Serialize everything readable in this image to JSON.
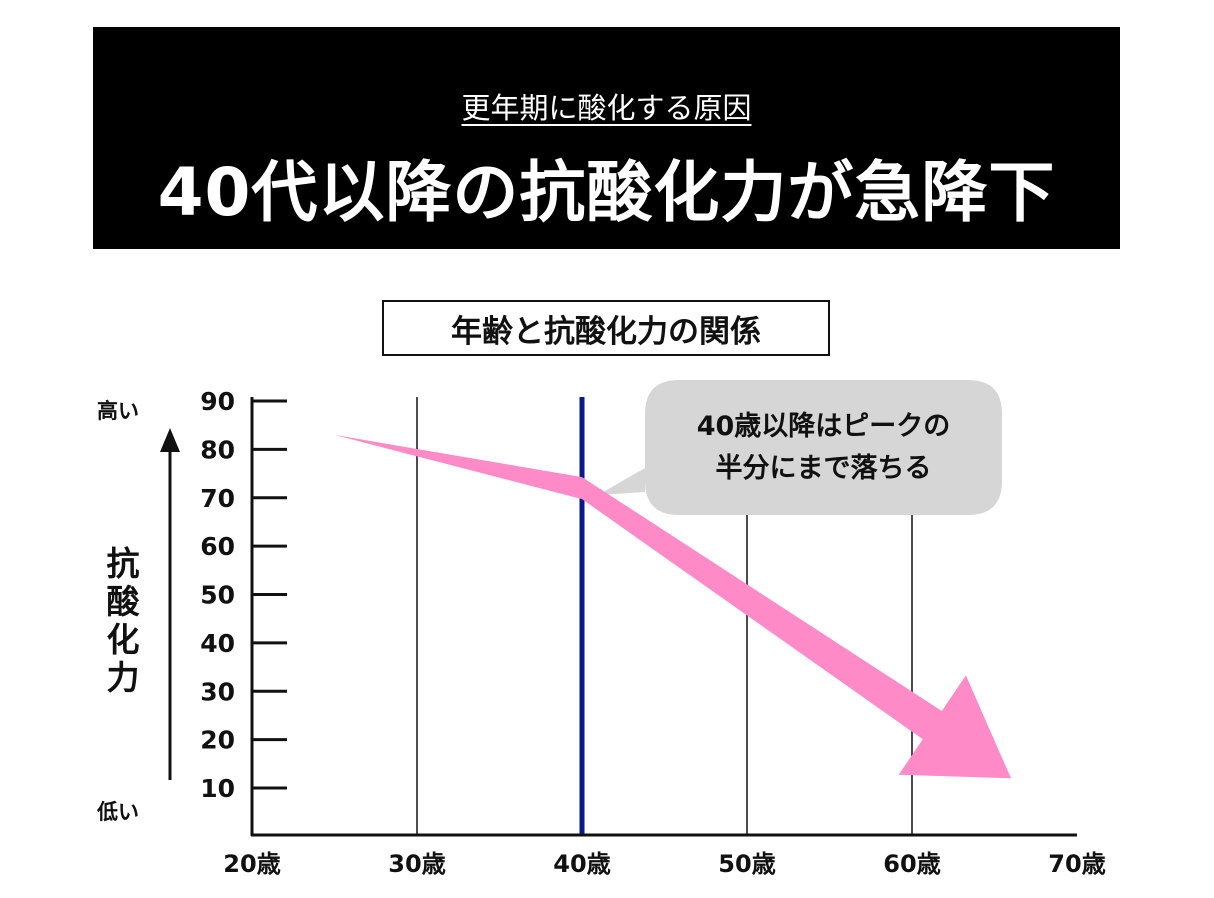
{
  "header": {
    "subtitle": "更年期に酸化する原因",
    "title": "40代以降の抗酸化力が急降下"
  },
  "chart_data": {
    "type": "line",
    "title": "年齢と抗酸化力の関係",
    "ylabel": "抗酸化力",
    "y_high_label": "高い",
    "y_low_label": "低い",
    "x_ticks": [
      "20歳",
      "30歳",
      "40歳",
      "50歳",
      "60歳",
      "70歳"
    ],
    "y_ticks": [
      10,
      20,
      30,
      40,
      50,
      60,
      70,
      80,
      90
    ],
    "xlim": [
      20,
      70
    ],
    "ylim": [
      1,
      90
    ],
    "grid_x": [
      30,
      50,
      60
    ],
    "highlight_x": 40,
    "series": [
      {
        "x": [
          25,
          40,
          66
        ],
        "y": [
          83,
          72,
          12
        ]
      }
    ],
    "annotation": {
      "lines": [
        "40歳以降はピークの",
        "半分にまで落ちる"
      ]
    }
  },
  "colors": {
    "background": "#ffffff",
    "header_bg": "#000000",
    "trend_arrow": "#ff8ac8",
    "highlight_line": "#0a1a8c",
    "callout_bg": "#d6d6d6",
    "axis": "#111111"
  }
}
